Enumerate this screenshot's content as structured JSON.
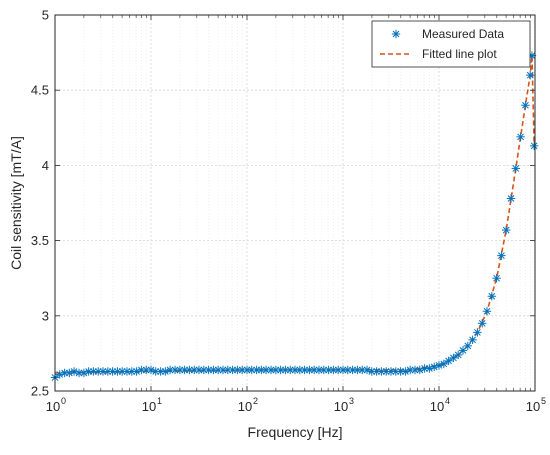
{
  "chart_data": {
    "type": "line",
    "title": "",
    "xlabel": "Frequency [Hz]",
    "ylabel": "Coil sensitivity [mT/A]",
    "x_scale": "log",
    "xlim": [
      1,
      100000
    ],
    "ylim": [
      2.5,
      5
    ],
    "grid": true,
    "legend_position": "top-right",
    "x_ticks": [
      {
        "value": 1,
        "base": "10",
        "exp": "0"
      },
      {
        "value": 10,
        "base": "10",
        "exp": "1"
      },
      {
        "value": 100,
        "base": "10",
        "exp": "2"
      },
      {
        "value": 1000,
        "base": "10",
        "exp": "3"
      },
      {
        "value": 10000,
        "base": "10",
        "exp": "4"
      },
      {
        "value": 100000,
        "base": "10",
        "exp": "5"
      }
    ],
    "y_ticks": [
      {
        "value": 2.5,
        "label": "2.5"
      },
      {
        "value": 3,
        "label": "3"
      },
      {
        "value": 3.5,
        "label": "3.5"
      },
      {
        "value": 4,
        "label": "4"
      },
      {
        "value": 4.5,
        "label": "4.5"
      },
      {
        "value": 5,
        "label": "5"
      }
    ],
    "series": [
      {
        "name": "Measured Data",
        "style": "marker",
        "marker": "asterisk",
        "color": "#0072BD",
        "x": [
          1,
          1.12,
          1.26,
          1.41,
          1.58,
          1.78,
          2,
          2.24,
          2.51,
          2.82,
          3.16,
          3.55,
          3.98,
          4.47,
          5.01,
          5.62,
          6.31,
          7.08,
          7.94,
          8.91,
          10,
          11.2,
          12.6,
          14.1,
          15.8,
          17.8,
          20,
          22.4,
          25.1,
          28.2,
          31.6,
          35.5,
          39.8,
          44.7,
          50.1,
          56.2,
          63.1,
          70.8,
          79.4,
          89.1,
          100,
          112,
          126,
          141,
          158,
          178,
          200,
          224,
          251,
          282,
          316,
          355,
          398,
          447,
          501,
          562,
          631,
          708,
          794,
          891,
          1000,
          1122,
          1259,
          1413,
          1585,
          1778,
          1995,
          2239,
          2512,
          2818,
          3162,
          3548,
          3981,
          4467,
          5012,
          5623,
          6310,
          7079,
          7943,
          8913,
          10000,
          11220,
          12589,
          14125,
          15849,
          17783,
          19953,
          22387,
          25119,
          28184,
          31623,
          35481,
          39811,
          44668,
          50119,
          56234,
          63096,
          70795,
          79433,
          89125,
          93000,
          98000
        ],
        "y": [
          2.59,
          2.61,
          2.62,
          2.62,
          2.63,
          2.62,
          2.62,
          2.63,
          2.63,
          2.63,
          2.63,
          2.63,
          2.63,
          2.63,
          2.63,
          2.63,
          2.63,
          2.63,
          2.64,
          2.64,
          2.64,
          2.63,
          2.63,
          2.63,
          2.64,
          2.64,
          2.64,
          2.64,
          2.64,
          2.64,
          2.64,
          2.64,
          2.64,
          2.64,
          2.64,
          2.64,
          2.64,
          2.64,
          2.64,
          2.64,
          2.64,
          2.64,
          2.64,
          2.64,
          2.64,
          2.64,
          2.64,
          2.64,
          2.64,
          2.64,
          2.64,
          2.64,
          2.64,
          2.64,
          2.64,
          2.64,
          2.64,
          2.64,
          2.64,
          2.64,
          2.64,
          2.64,
          2.64,
          2.64,
          2.64,
          2.64,
          2.63,
          2.63,
          2.63,
          2.63,
          2.63,
          2.63,
          2.63,
          2.63,
          2.64,
          2.64,
          2.64,
          2.65,
          2.65,
          2.66,
          2.67,
          2.68,
          2.7,
          2.72,
          2.74,
          2.77,
          2.8,
          2.84,
          2.89,
          2.95,
          3.03,
          3.13,
          3.25,
          3.4,
          3.57,
          3.78,
          3.98,
          4.19,
          4.4,
          4.6,
          4.73,
          4.13
        ]
      },
      {
        "name": "Fitted line plot",
        "style": "dashed-line",
        "color": "#D95319",
        "x": [
          1,
          10,
          100,
          1000,
          5012,
          10000,
          12589,
          15849,
          19953,
          25119,
          31623,
          39811,
          50119,
          63096,
          79433,
          89125,
          93000,
          98000
        ],
        "y": [
          2.62,
          2.63,
          2.64,
          2.64,
          2.64,
          2.67,
          2.7,
          2.74,
          2.8,
          2.89,
          3.03,
          3.25,
          3.57,
          3.98,
          4.4,
          4.6,
          4.73,
          4.13
        ]
      }
    ]
  }
}
